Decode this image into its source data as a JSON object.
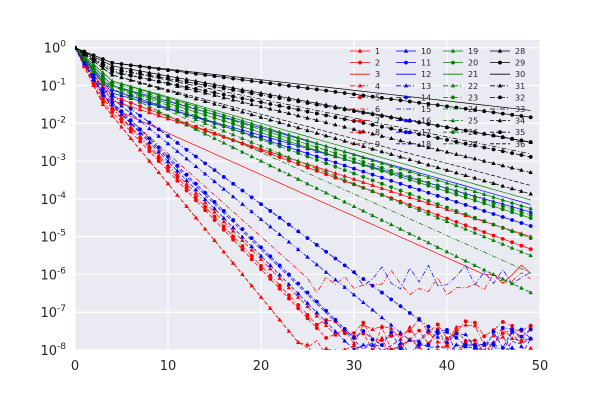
{
  "chart_data": {
    "type": "line",
    "title": "",
    "xlabel": "",
    "ylabel": "",
    "xlim": [
      0,
      50
    ],
    "ylim": [
      1e-08,
      1.6
    ],
    "yscale": "log",
    "grid": true,
    "legend_position": "top-right",
    "legend_columns": 4,
    "x_ticks": [
      {
        "value": 0,
        "label": "0"
      },
      {
        "value": 10,
        "label": "10"
      },
      {
        "value": 20,
        "label": "20"
      },
      {
        "value": 30,
        "label": "30"
      },
      {
        "value": 40,
        "label": "40"
      },
      {
        "value": 50,
        "label": "50"
      }
    ],
    "y_ticks": [
      {
        "exp": 0,
        "base": "10",
        "sup": "0"
      },
      {
        "exp": -1,
        "base": "10",
        "sup": "-1"
      },
      {
        "exp": -2,
        "base": "10",
        "sup": "-2"
      },
      {
        "exp": -3,
        "base": "10",
        "sup": "-3"
      },
      {
        "exp": -4,
        "base": "10",
        "sup": "-4"
      },
      {
        "exp": -5,
        "base": "10",
        "sup": "-5"
      },
      {
        "exp": -6,
        "base": "10",
        "sup": "-6"
      },
      {
        "exp": -7,
        "base": "10",
        "sup": "-7"
      },
      {
        "exp": -8,
        "base": "10",
        "sup": "-8"
      }
    ],
    "x": [
      0,
      1,
      2,
      3,
      4,
      5,
      6,
      7,
      8,
      9,
      10,
      11,
      12,
      13,
      14,
      15,
      16,
      17,
      18,
      19,
      20,
      21,
      22,
      23,
      24,
      25,
      26,
      27,
      28,
      29,
      30,
      31,
      32,
      33,
      34,
      35,
      36,
      37,
      38,
      39,
      40,
      41,
      42,
      43,
      44,
      45,
      46,
      47,
      48,
      49
    ],
    "series": [
      {
        "name": "1",
        "color": "#ff0000",
        "style": "solid",
        "marker": "tri",
        "fast_log_rate": -0.35,
        "slow_log_rate": -0.08,
        "knee_x": 4,
        "floor_exp": -6.0
      },
      {
        "name": "2",
        "color": "#ff0000",
        "style": "solid",
        "marker": "dot",
        "fast_log_rate": -0.32,
        "slow_log_rate": -0.09,
        "knee_x": 4,
        "floor_exp": -5.9
      },
      {
        "name": "3",
        "color": "#ff0000",
        "style": "solid",
        "marker": "none",
        "fast_log_rate": -0.4,
        "slow_log_rate": -0.11,
        "knee_x": 4,
        "floor_exp": -6.1
      },
      {
        "name": "4",
        "color": "#ff0000",
        "style": "dashdot",
        "marker": "tri",
        "fast_log_rate": -0.45,
        "slow_log_rate": -0.25,
        "knee_x": 3,
        "floor_exp": -7.6
      },
      {
        "name": "5",
        "color": "#ff0000",
        "style": "dashdot",
        "marker": "dot",
        "fast_log_rate": -0.45,
        "slow_log_rate": -0.26,
        "knee_x": 3,
        "floor_exp": -7.5
      },
      {
        "name": "6",
        "color": "#ff0000",
        "style": "dashdot",
        "marker": "none",
        "fast_log_rate": -0.42,
        "slow_log_rate": -0.22,
        "knee_x": 3,
        "floor_exp": -6.2
      },
      {
        "name": "7",
        "color": "#ff0000",
        "style": "dashed",
        "marker": "tri",
        "fast_log_rate": -0.5,
        "slow_log_rate": -0.3,
        "knee_x": 3,
        "floor_exp": -8.0
      },
      {
        "name": "8",
        "color": "#ff0000",
        "style": "dashed",
        "marker": "dot",
        "fast_log_rate": -0.48,
        "slow_log_rate": -0.26,
        "knee_x": 3,
        "floor_exp": -7.7
      },
      {
        "name": "9",
        "color": "#ff0000",
        "style": "dashed",
        "marker": "none",
        "fast_log_rate": -0.5,
        "slow_log_rate": -0.3,
        "knee_x": 3,
        "floor_exp": -8.0
      },
      {
        "name": "10",
        "color": "#0000ff",
        "style": "solid",
        "marker": "tri",
        "fast_log_rate": -0.3,
        "slow_log_rate": -0.07,
        "knee_x": 4,
        "floor_exp": -5.9
      },
      {
        "name": "11",
        "color": "#0000ff",
        "style": "solid",
        "marker": "dot",
        "fast_log_rate": -0.28,
        "slow_log_rate": -0.08,
        "knee_x": 4,
        "floor_exp": -6.0
      },
      {
        "name": "12",
        "color": "#0000ff",
        "style": "solid",
        "marker": "none",
        "fast_log_rate": -0.25,
        "slow_log_rate": -0.07,
        "knee_x": 4,
        "floor_exp": -5.7
      },
      {
        "name": "13",
        "color": "#0000ff",
        "style": "dashdot",
        "marker": "tri",
        "fast_log_rate": -0.38,
        "slow_log_rate": -0.2,
        "knee_x": 3,
        "floor_exp": -7.8
      },
      {
        "name": "14",
        "color": "#0000ff",
        "style": "dashdot",
        "marker": "dot",
        "fast_log_rate": -0.36,
        "slow_log_rate": -0.18,
        "knee_x": 3,
        "floor_exp": -7.6
      },
      {
        "name": "15",
        "color": "#0000ff",
        "style": "dashdot",
        "marker": "none",
        "fast_log_rate": -0.36,
        "slow_log_rate": -0.18,
        "knee_x": 3,
        "floor_exp": -6.1
      },
      {
        "name": "16",
        "color": "#0000ff",
        "style": "dashed",
        "marker": "tri",
        "fast_log_rate": -0.42,
        "slow_log_rate": -0.25,
        "knee_x": 3,
        "floor_exp": -8.0
      },
      {
        "name": "17",
        "color": "#0000ff",
        "style": "dashed",
        "marker": "dot",
        "fast_log_rate": -0.4,
        "slow_log_rate": -0.24,
        "knee_x": 3,
        "floor_exp": -7.8
      },
      {
        "name": "18",
        "color": "#0000ff",
        "style": "dashed",
        "marker": "none",
        "fast_log_rate": -0.42,
        "slow_log_rate": -0.24,
        "knee_x": 3,
        "floor_exp": -8.0
      },
      {
        "name": "19",
        "color": "#008000",
        "style": "solid",
        "marker": "tri",
        "fast_log_rate": -0.22,
        "slow_log_rate": -0.075,
        "knee_x": 4,
        "floor_exp": -5.9
      },
      {
        "name": "20",
        "color": "#008000",
        "style": "solid",
        "marker": "dot",
        "fast_log_rate": -0.25,
        "slow_log_rate": -0.078,
        "knee_x": 4,
        "floor_exp": -5.9
      },
      {
        "name": "21",
        "color": "#008000",
        "style": "solid",
        "marker": "none",
        "fast_log_rate": -0.22,
        "slow_log_rate": -0.07,
        "knee_x": 4,
        "floor_exp": -5.8
      },
      {
        "name": "22",
        "color": "#008000",
        "style": "dashdot",
        "marker": "tri",
        "fast_log_rate": -0.3,
        "slow_log_rate": -0.1,
        "knee_x": 3,
        "floor_exp": -7.2
      },
      {
        "name": "23",
        "color": "#008000",
        "style": "dashdot",
        "marker": "dot",
        "fast_log_rate": -0.28,
        "slow_log_rate": -0.078,
        "knee_x": 3,
        "floor_exp": -5.9
      },
      {
        "name": "24",
        "color": "#008000",
        "style": "dashdot",
        "marker": "none",
        "fast_log_rate": -0.3,
        "slow_log_rate": -0.11,
        "knee_x": 3,
        "floor_exp": -6.8
      },
      {
        "name": "25",
        "color": "#008000",
        "style": "dashed",
        "marker": "tri",
        "fast_log_rate": -0.32,
        "slow_log_rate": -0.12,
        "knee_x": 3,
        "floor_exp": -7.2
      },
      {
        "name": "26",
        "color": "#008000",
        "style": "dashed",
        "marker": "dot",
        "fast_log_rate": -0.3,
        "slow_log_rate": -0.09,
        "knee_x": 3,
        "floor_exp": -6.2
      },
      {
        "name": "27",
        "color": "#008000",
        "style": "dashed",
        "marker": "none",
        "fast_log_rate": -0.32,
        "slow_log_rate": -0.12,
        "knee_x": 3,
        "floor_exp": -7.0
      },
      {
        "name": "28",
        "color": "#000000",
        "style": "solid",
        "marker": "tri",
        "fast_log_rate": -0.12,
        "slow_log_rate": -0.045,
        "knee_x": 4,
        "floor_exp": -9.0
      },
      {
        "name": "29",
        "color": "#000000",
        "style": "solid",
        "marker": "dot",
        "fast_log_rate": -0.1,
        "slow_log_rate": -0.032,
        "knee_x": 4,
        "floor_exp": -9.0
      },
      {
        "name": "30",
        "color": "#000000",
        "style": "solid",
        "marker": "none",
        "fast_log_rate": -0.1,
        "slow_log_rate": -0.028,
        "knee_x": 4,
        "floor_exp": -9.0
      },
      {
        "name": "31",
        "color": "#000000",
        "style": "dashdot",
        "marker": "tri",
        "fast_log_rate": -0.15,
        "slow_log_rate": -0.06,
        "knee_x": 4,
        "floor_exp": -9.0
      },
      {
        "name": "32",
        "color": "#000000",
        "style": "dashdot",
        "marker": "dot",
        "fast_log_rate": -0.14,
        "slow_log_rate": -0.043,
        "knee_x": 4,
        "floor_exp": -9.0
      },
      {
        "name": "33",
        "color": "#000000",
        "style": "dashdot",
        "marker": "none",
        "fast_log_rate": -0.14,
        "slow_log_rate": -0.05,
        "knee_x": 4,
        "floor_exp": -9.0
      },
      {
        "name": "34",
        "color": "#000000",
        "style": "dashed",
        "marker": "tri",
        "fast_log_rate": -0.18,
        "slow_log_rate": -0.07,
        "knee_x": 4,
        "floor_exp": -9.0
      },
      {
        "name": "35",
        "color": "#000000",
        "style": "dashed",
        "marker": "dot",
        "fast_log_rate": -0.16,
        "slow_log_rate": -0.05,
        "knee_x": 4,
        "floor_exp": -9.0
      },
      {
        "name": "36",
        "color": "#000000",
        "style": "dashed",
        "marker": "none",
        "fast_log_rate": -0.18,
        "slow_log_rate": -0.065,
        "knee_x": 4,
        "floor_exp": -9.0
      }
    ]
  }
}
